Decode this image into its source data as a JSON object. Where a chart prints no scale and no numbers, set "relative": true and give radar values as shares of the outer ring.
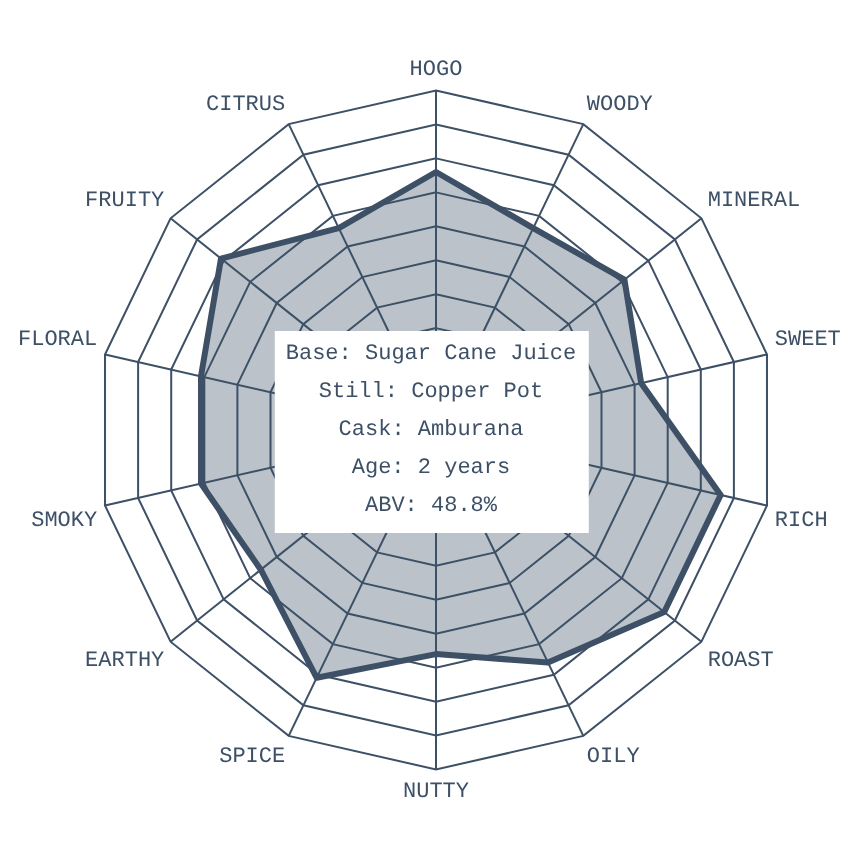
{
  "chart_data": {
    "type": "radar",
    "relative": true,
    "categories": [
      "HOGO",
      "WOODY",
      "MINERAL",
      "SWEET",
      "RICH",
      "ROAST",
      "OILY",
      "NUTTY",
      "SPICE",
      "EARTHY",
      "SMOKY",
      "FLORAL",
      "FRUITY",
      "CITRUS"
    ],
    "series": [
      {
        "color": "#3d5066",
        "values": [
          0.76,
          0.66,
          0.71,
          0.62,
          0.86,
          0.86,
          0.76,
          0.66,
          0.81,
          0.66,
          0.71,
          0.71,
          0.81,
          0.66
        ]
      }
    ],
    "annotations": [
      "Base: Sugar Cane Juice",
      "Still: Copper Pot",
      "Cask: Amburana",
      "Age: 2 years",
      "ABV: 48.8%"
    ],
    "legend": false
  }
}
